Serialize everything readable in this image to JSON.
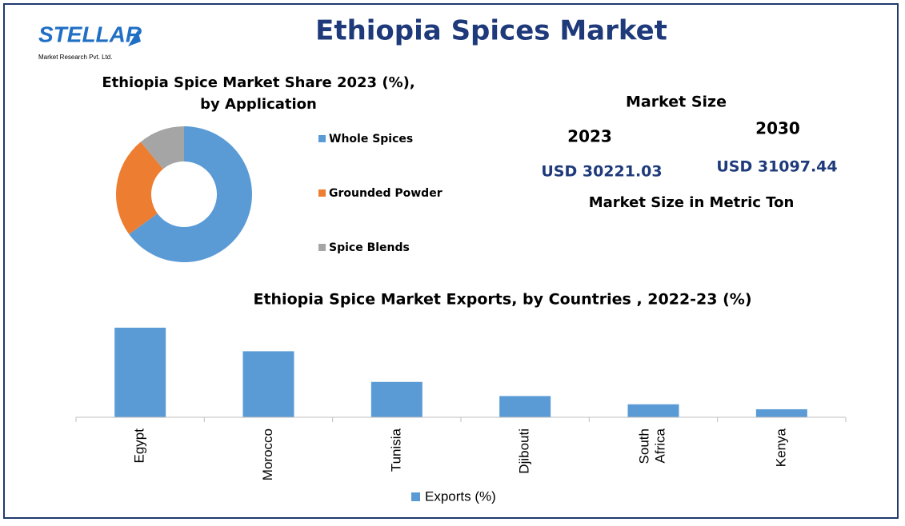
{
  "logo": {
    "name": "STELLAR",
    "subtitle": "Market Research Pvt. Ltd."
  },
  "title": "Ethiopia Spices Market",
  "market_size": {
    "title": "Market Size",
    "years": [
      "2023",
      "2030"
    ],
    "values": [
      "USD 30221.03",
      "USD 31097.44"
    ],
    "note": "Market Size in Metric Ton"
  },
  "chart_data": [
    {
      "type": "donut",
      "title": "Ethiopia Spice Market Share 2023 (%), by Application",
      "categories": [
        "Whole Spices",
        "Grounded Powder",
        "Spice Blends"
      ],
      "values": [
        65,
        24,
        11
      ],
      "colors": [
        "#5b9bd5",
        "#ed7d31",
        "#a5a5a5"
      ],
      "legend": "right"
    },
    {
      "type": "bar",
      "title": "Ethiopia Spice Market Exports, by Countries , 2022-23 (%)",
      "categories": [
        "Egypt",
        "Morocco",
        "Tunisia",
        "Djibouti",
        "South Africa",
        "Kenya"
      ],
      "series": [
        {
          "name": "Exports (%)",
          "color": "#5b9bd5",
          "values": [
            38,
            28,
            15,
            9,
            5.5,
            3.4
          ]
        }
      ],
      "ylim": [
        0,
        40
      ],
      "legend": "bottom"
    }
  ]
}
